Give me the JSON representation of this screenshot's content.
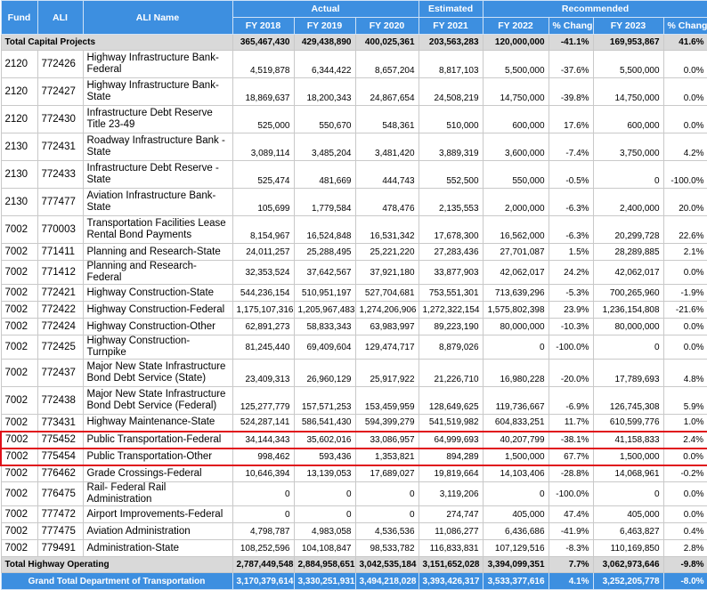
{
  "headers": {
    "fund": "Fund",
    "ali": "ALI",
    "ali_name": "ALI Name",
    "actual": "Actual",
    "estimated": "Estimated",
    "recommended": "Recommended",
    "fy2018": "FY 2018",
    "fy2019": "FY 2019",
    "fy2020": "FY 2020",
    "fy2021": "FY 2021",
    "fy2022": "FY 2022",
    "pct1": "% Change",
    "fy2023": "FY 2023",
    "pct2": "% Change"
  },
  "capital_total": {
    "label": "Total Capital Projects",
    "fy2018": "365,467,430",
    "fy2019": "429,438,890",
    "fy2020": "400,025,361",
    "fy2021": "203,563,283",
    "fy2022": "120,000,000",
    "pct1": "-41.1%",
    "fy2023": "169,953,867",
    "pct2": "41.6%"
  },
  "rows": [
    {
      "fund": "2120",
      "ali": "772426",
      "name": "Highway Infrastructure Bank-Federal",
      "fy2018": "4,519,878",
      "fy2019": "6,344,422",
      "fy2020": "8,657,204",
      "fy2021": "8,817,103",
      "fy2022": "5,500,000",
      "pct1": "-37.6%",
      "fy2023": "5,500,000",
      "pct2": "0.0%",
      "tall": true
    },
    {
      "fund": "2120",
      "ali": "772427",
      "name": "Highway Infrastructure Bank-State",
      "fy2018": "18,869,637",
      "fy2019": "18,200,343",
      "fy2020": "24,867,654",
      "fy2021": "24,508,219",
      "fy2022": "14,750,000",
      "pct1": "-39.8%",
      "fy2023": "14,750,000",
      "pct2": "0.0%",
      "tall": true
    },
    {
      "fund": "2120",
      "ali": "772430",
      "name": "Infrastructure Debt Reserve Title 23-49",
      "fy2018": "525,000",
      "fy2019": "550,670",
      "fy2020": "548,361",
      "fy2021": "510,000",
      "fy2022": "600,000",
      "pct1": "17.6%",
      "fy2023": "600,000",
      "pct2": "0.0%",
      "tall": true
    },
    {
      "fund": "2130",
      "ali": "772431",
      "name": "Roadway Infrastructure Bank - State",
      "fy2018": "3,089,114",
      "fy2019": "3,485,204",
      "fy2020": "3,481,420",
      "fy2021": "3,889,319",
      "fy2022": "3,600,000",
      "pct1": "-7.4%",
      "fy2023": "3,750,000",
      "pct2": "4.2%",
      "tall": true
    },
    {
      "fund": "2130",
      "ali": "772433",
      "name": "Infrastructure Debt Reserve - State",
      "fy2018": "525,474",
      "fy2019": "481,669",
      "fy2020": "444,743",
      "fy2021": "552,500",
      "fy2022": "550,000",
      "pct1": "-0.5%",
      "fy2023": "0",
      "pct2": "-100.0%",
      "tall": true
    },
    {
      "fund": "2130",
      "ali": "777477",
      "name": "Aviation Infrastructure Bank-State",
      "fy2018": "105,699",
      "fy2019": "1,779,584",
      "fy2020": "478,476",
      "fy2021": "2,135,553",
      "fy2022": "2,000,000",
      "pct1": "-6.3%",
      "fy2023": "2,400,000",
      "pct2": "20.0%",
      "tall": true
    },
    {
      "fund": "7002",
      "ali": "770003",
      "name": "Transportation Facilities Lease Rental Bond Payments",
      "fy2018": "8,154,967",
      "fy2019": "16,524,848",
      "fy2020": "16,531,342",
      "fy2021": "17,678,300",
      "fy2022": "16,562,000",
      "pct1": "-6.3%",
      "fy2023": "20,299,728",
      "pct2": "22.6%",
      "tall": true
    },
    {
      "fund": "7002",
      "ali": "771411",
      "name": "Planning and Research-State",
      "fy2018": "24,011,257",
      "fy2019": "25,288,495",
      "fy2020": "25,221,220",
      "fy2021": "27,283,436",
      "fy2022": "27,701,087",
      "pct1": "1.5%",
      "fy2023": "28,289,885",
      "pct2": "2.1%",
      "tall": false
    },
    {
      "fund": "7002",
      "ali": "771412",
      "name": "Planning and Research-Federal",
      "fy2018": "32,353,524",
      "fy2019": "37,642,567",
      "fy2020": "37,921,180",
      "fy2021": "33,877,903",
      "fy2022": "42,062,017",
      "pct1": "24.2%",
      "fy2023": "42,062,017",
      "pct2": "0.0%",
      "tall": false
    },
    {
      "fund": "7002",
      "ali": "772421",
      "name": "Highway Construction-State",
      "fy2018": "544,236,154",
      "fy2019": "510,951,197",
      "fy2020": "527,704,681",
      "fy2021": "753,551,301",
      "fy2022": "713,639,296",
      "pct1": "-5.3%",
      "fy2023": "700,265,960",
      "pct2": "-1.9%",
      "tall": false
    },
    {
      "fund": "7002",
      "ali": "772422",
      "name": "Highway Construction-Federal",
      "fy2018": "1,175,107,316",
      "fy2019": "1,205,967,483",
      "fy2020": "1,274,206,906",
      "fy2021": "1,272,322,154",
      "fy2022": "1,575,802,398",
      "pct1": "23.9%",
      "fy2023": "1,236,154,808",
      "pct2": "-21.6%",
      "tall": false
    },
    {
      "fund": "7002",
      "ali": "772424",
      "name": "Highway Construction-Other",
      "fy2018": "62,891,273",
      "fy2019": "58,833,343",
      "fy2020": "63,983,997",
      "fy2021": "89,223,190",
      "fy2022": "80,000,000",
      "pct1": "-10.3%",
      "fy2023": "80,000,000",
      "pct2": "0.0%",
      "tall": false
    },
    {
      "fund": "7002",
      "ali": "772425",
      "name": "Highway Construction-Turnpike",
      "fy2018": "81,245,440",
      "fy2019": "69,409,604",
      "fy2020": "129,474,717",
      "fy2021": "8,879,026",
      "fy2022": "0",
      "pct1": "-100.0%",
      "fy2023": "0",
      "pct2": "0.0%",
      "tall": false
    },
    {
      "fund": "7002",
      "ali": "772437",
      "name": "Major New State Infrastructure Bond Debt Service (State)",
      "fy2018": "23,409,313",
      "fy2019": "26,960,129",
      "fy2020": "25,917,922",
      "fy2021": "21,226,710",
      "fy2022": "16,980,228",
      "pct1": "-20.0%",
      "fy2023": "17,789,693",
      "pct2": "4.8%",
      "tall": true
    },
    {
      "fund": "7002",
      "ali": "772438",
      "name": "Major New State Infrastructure Bond Debt Service (Federal)",
      "fy2018": "125,277,779",
      "fy2019": "157,571,253",
      "fy2020": "153,459,959",
      "fy2021": "128,649,625",
      "fy2022": "119,736,667",
      "pct1": "-6.9%",
      "fy2023": "126,745,308",
      "pct2": "5.9%",
      "tall": true
    },
    {
      "fund": "7002",
      "ali": "773431",
      "name": "Highway Maintenance-State",
      "fy2018": "524,287,141",
      "fy2019": "586,541,430",
      "fy2020": "594,399,279",
      "fy2021": "541,519,982",
      "fy2022": "604,833,251",
      "pct1": "11.7%",
      "fy2023": "610,599,776",
      "pct2": "1.0%",
      "tall": false
    },
    {
      "fund": "7002",
      "ali": "775452",
      "name": "Public Transportation-Federal",
      "fy2018": "34,144,343",
      "fy2019": "35,602,016",
      "fy2020": "33,086,957",
      "fy2021": "64,999,693",
      "fy2022": "40,207,799",
      "pct1": "-38.1%",
      "fy2023": "41,158,833",
      "pct2": "2.4%",
      "tall": false,
      "highlight": true
    },
    {
      "fund": "7002",
      "ali": "775454",
      "name": "Public Transportation-Other",
      "fy2018": "998,462",
      "fy2019": "593,436",
      "fy2020": "1,353,821",
      "fy2021": "894,289",
      "fy2022": "1,500,000",
      "pct1": "67.7%",
      "fy2023": "1,500,000",
      "pct2": "0.0%",
      "tall": false,
      "highlight": true
    },
    {
      "fund": "7002",
      "ali": "776462",
      "name": "Grade Crossings-Federal",
      "fy2018": "10,646,394",
      "fy2019": "13,139,053",
      "fy2020": "17,689,027",
      "fy2021": "19,819,664",
      "fy2022": "14,103,406",
      "pct1": "-28.8%",
      "fy2023": "14,068,961",
      "pct2": "-0.2%",
      "tall": false
    },
    {
      "fund": "7002",
      "ali": "776475",
      "name": "Rail- Federal Rail Administration",
      "fy2018": "0",
      "fy2019": "0",
      "fy2020": "0",
      "fy2021": "3,119,206",
      "fy2022": "0",
      "pct1": "-100.0%",
      "fy2023": "0",
      "pct2": "0.0%",
      "tall": false
    },
    {
      "fund": "7002",
      "ali": "777472",
      "name": "Airport Improvements-Federal",
      "fy2018": "0",
      "fy2019": "0",
      "fy2020": "0",
      "fy2021": "274,747",
      "fy2022": "405,000",
      "pct1": "47.4%",
      "fy2023": "405,000",
      "pct2": "0.0%",
      "tall": false
    },
    {
      "fund": "7002",
      "ali": "777475",
      "name": "Aviation Administration",
      "fy2018": "4,798,787",
      "fy2019": "4,983,058",
      "fy2020": "4,536,536",
      "fy2021": "11,086,277",
      "fy2022": "6,436,686",
      "pct1": "-41.9%",
      "fy2023": "6,463,827",
      "pct2": "0.4%",
      "tall": false
    },
    {
      "fund": "7002",
      "ali": "779491",
      "name": "Administration-State",
      "fy2018": "108,252,596",
      "fy2019": "104,108,847",
      "fy2020": "98,533,782",
      "fy2021": "116,833,831",
      "fy2022": "107,129,516",
      "pct1": "-8.3%",
      "fy2023": "110,169,850",
      "pct2": "2.8%",
      "tall": false
    }
  ],
  "highway_total": {
    "label": "Total Highway Operating",
    "fy2018": "2,787,449,548",
    "fy2019": "2,884,958,651",
    "fy2020": "3,042,535,184",
    "fy2021": "3,151,652,028",
    "fy2022": "3,394,099,351",
    "pct1": "7.7%",
    "fy2023": "3,062,973,646",
    "pct2": "-9.8%"
  },
  "grand_total": {
    "label": "Grand Total Department of Transportation",
    "fy2018": "3,170,379,614",
    "fy2019": "3,330,251,931",
    "fy2020": "3,494,218,028",
    "fy2021": "3,393,426,317",
    "fy2022": "3,533,377,616",
    "pct1": "4.1%",
    "fy2023": "3,252,205,778",
    "pct2": "-8.0%"
  }
}
